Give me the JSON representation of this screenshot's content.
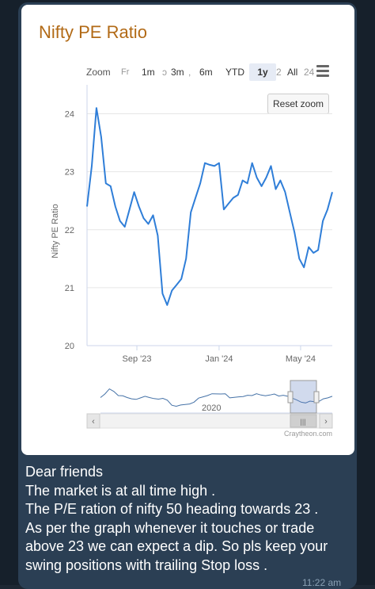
{
  "chart_data": {
    "type": "line",
    "title": "Nifty PE Ratio",
    "ylabel": "Nifty PE Ratio",
    "xlabel": "",
    "ylim": [
      20,
      24.5
    ],
    "y_ticks": [
      "20",
      "21",
      "22",
      "23",
      "24"
    ],
    "x_ticks": [
      "Sep '23",
      "Jan '24",
      "May '24"
    ],
    "grid": true,
    "series": [
      {
        "color": "#2f7ed8",
        "x": [
          "2023-06-19",
          "2023-06-26",
          "2023-07-03",
          "2023-07-10",
          "2023-07-17",
          "2023-07-24",
          "2023-07-31",
          "2023-08-07",
          "2023-08-14",
          "2023-08-21",
          "2023-08-28",
          "2023-09-04",
          "2023-09-11",
          "2023-09-18",
          "2023-09-25",
          "2023-10-02",
          "2023-10-09",
          "2023-10-16",
          "2023-10-23",
          "2023-10-30",
          "2023-11-06",
          "2023-11-13",
          "2023-11-20",
          "2023-11-27",
          "2023-12-04",
          "2023-12-11",
          "2023-12-18",
          "2023-12-25",
          "2024-01-01",
          "2024-01-08",
          "2024-01-15",
          "2024-01-22",
          "2024-01-29",
          "2024-02-05",
          "2024-02-12",
          "2024-02-19",
          "2024-02-26",
          "2024-03-04",
          "2024-03-11",
          "2024-03-18",
          "2024-03-25",
          "2024-04-01",
          "2024-04-08",
          "2024-04-15",
          "2024-04-22",
          "2024-04-29",
          "2024-05-06",
          "2024-05-13",
          "2024-05-20",
          "2024-05-27",
          "2024-06-03",
          "2024-06-10",
          "2024-06-17"
        ],
        "y": [
          22.4,
          23.1,
          24.1,
          23.6,
          22.8,
          22.75,
          22.4,
          22.15,
          22.05,
          22.35,
          22.65,
          22.4,
          22.2,
          22.1,
          22.25,
          21.9,
          20.9,
          20.7,
          20.95,
          21.05,
          21.15,
          21.5,
          22.3,
          22.55,
          22.8,
          23.15,
          23.12,
          23.1,
          23.15,
          22.35,
          22.45,
          22.55,
          22.6,
          22.85,
          22.8,
          23.15,
          22.9,
          22.75,
          22.9,
          23.1,
          22.7,
          22.85,
          22.65,
          22.3,
          21.95,
          21.5,
          21.35,
          21.7,
          21.6,
          21.65,
          22.15,
          22.35,
          22.65
        ]
      }
    ],
    "navigator_label": "2020",
    "credit": "Craytheon.com"
  },
  "range_selector": {
    "zoom_label": "Zoom",
    "buttons": [
      "1m",
      "3m",
      "6m",
      "YTD",
      "1y",
      "All"
    ],
    "selected": "1y",
    "fragments": [
      "Fr",
      "ɔ",
      ",",
      "2",
      "24"
    ]
  },
  "reset_zoom_label": "Reset zoom",
  "scrollbar": {
    "left_arrow": "‹",
    "right_arrow": "›",
    "grip": "|||"
  },
  "message": {
    "lines": [
      "Dear friends",
      "The market is at all time high .",
      "The P/E ration of nifty 50 heading towards 23 .",
      "As per the graph  whenever it touches or trade",
      "above 23 we can expect a dip. So pls keep your",
      "swing positions with trailing Stop loss ."
    ],
    "time": "11:22 am"
  }
}
